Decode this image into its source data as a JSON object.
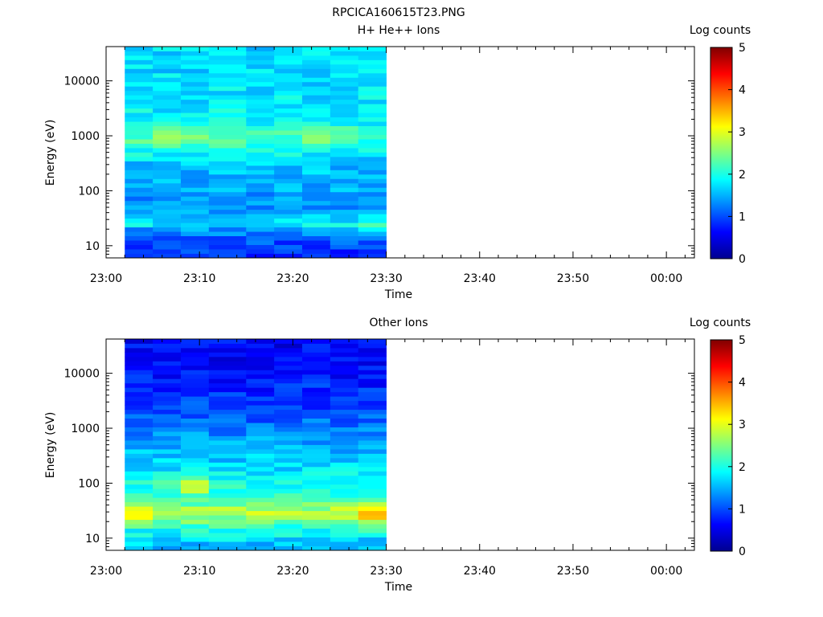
{
  "page_title": "RPCICA160615T23.PNG",
  "colorbar_label": "Log counts",
  "colorbar_ticks": [
    "0",
    "1",
    "2",
    "3",
    "4",
    "5"
  ],
  "chart_data": [
    {
      "type": "heatmap",
      "title": "H+ He++ Ions",
      "xlabel": "Time",
      "ylabel": "Energy (eV)",
      "x_ticks": [
        "23:00",
        "23:10",
        "23:20",
        "23:30",
        "23:40",
        "23:50",
        "00:00"
      ],
      "x_range": [
        "23:00",
        "00:03"
      ],
      "y_scale": "log",
      "y_ticks": [
        "10",
        "100",
        "1000",
        "10000"
      ],
      "y_range": [
        6,
        42000
      ],
      "zlabel": "Log counts",
      "z_range": [
        0,
        5
      ],
      "time_bins": [
        "23:02",
        "23:05",
        "23:08",
        "23:11",
        "23:15",
        "23:18",
        "23:21",
        "23:24",
        "23:27",
        "23:30"
      ],
      "energy_profile": [
        {
          "energy": 7,
          "log_counts": 0.9
        },
        {
          "energy": 12,
          "log_counts": 1.0
        },
        {
          "energy": 20,
          "log_counts": 1.4
        },
        {
          "energy": 25,
          "log_counts": 1.9
        },
        {
          "energy": 35,
          "log_counts": 1.6
        },
        {
          "energy": 60,
          "log_counts": 1.3
        },
        {
          "energy": 120,
          "log_counts": 1.5
        },
        {
          "energy": 300,
          "log_counts": 1.6
        },
        {
          "energy": 900,
          "log_counts": 2.2
        },
        {
          "energy": 2000,
          "log_counts": 1.85
        },
        {
          "energy": 8000,
          "log_counts": 1.75
        },
        {
          "energy": 30000,
          "log_counts": 1.7
        }
      ],
      "time_hotspots": [
        {
          "time": "23:06",
          "energy": 900,
          "log_counts": 2.4
        },
        {
          "time": "23:10",
          "energy": 1000,
          "log_counts": 2.6
        },
        {
          "time": "23:23",
          "energy": 950,
          "log_counts": 2.7
        },
        {
          "time": "23:29",
          "energy": 25,
          "log_counts": 2.1
        }
      ]
    },
    {
      "type": "heatmap",
      "title": "Other Ions",
      "xlabel": "Time",
      "ylabel": "Energy (eV)",
      "x_ticks": [
        "23:00",
        "23:10",
        "23:20",
        "23:30",
        "23:40",
        "23:50",
        "00:00"
      ],
      "x_range": [
        "23:00",
        "00:03"
      ],
      "y_scale": "log",
      "y_ticks": [
        "10",
        "100",
        "1000",
        "10000"
      ],
      "y_range": [
        6,
        42000
      ],
      "zlabel": "Log counts",
      "z_range": [
        0,
        5
      ],
      "time_bins": [
        "23:02",
        "23:05",
        "23:08",
        "23:11",
        "23:15",
        "23:18",
        "23:21",
        "23:24",
        "23:27",
        "23:30"
      ],
      "energy_profile": [
        {
          "energy": 8,
          "log_counts": 1.6
        },
        {
          "energy": 15,
          "log_counts": 2.0
        },
        {
          "energy": 22,
          "log_counts": 2.5
        },
        {
          "energy": 30,
          "log_counts": 2.8
        },
        {
          "energy": 45,
          "log_counts": 2.3
        },
        {
          "energy": 80,
          "log_counts": 2.0
        },
        {
          "energy": 200,
          "log_counts": 1.7
        },
        {
          "energy": 600,
          "log_counts": 1.4
        },
        {
          "energy": 2000,
          "log_counts": 1.0
        },
        {
          "energy": 10000,
          "log_counts": 0.7
        },
        {
          "energy": 35000,
          "log_counts": 0.6
        }
      ],
      "time_hotspots": [
        {
          "time": "23:03",
          "energy": 30,
          "log_counts": 3.0
        },
        {
          "time": "23:09",
          "energy": 90,
          "log_counts": 2.8
        },
        {
          "time": "23:28",
          "energy": 28,
          "log_counts": 3.3
        }
      ]
    }
  ]
}
